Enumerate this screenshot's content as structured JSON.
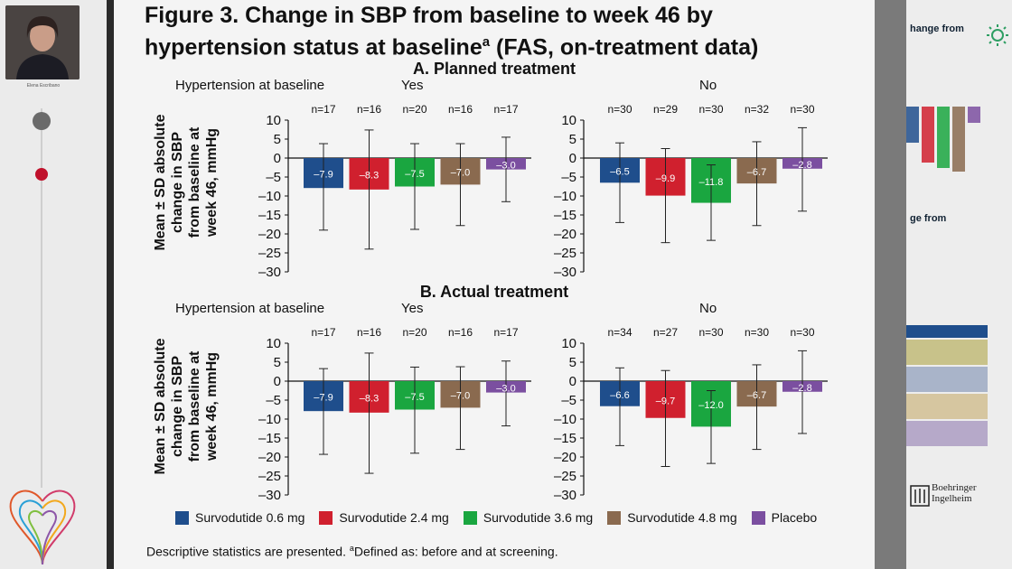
{
  "speaker": {
    "name": "Elena Escribano"
  },
  "slide": {
    "title": "Figure 3. Change in SBP from baseline to week 46 by hypertension status at baseline",
    "title_sup": "a",
    "title_suffix": " (FAS, on-treatment data)",
    "footnote_main": "Descriptive statistics are presented. ",
    "footnote_sup": "a",
    "footnote_rest": "Defined as: before and at screening."
  },
  "panels": {
    "a": {
      "title": "A. Planned treatment"
    },
    "b": {
      "title": "B. Actual treatment"
    },
    "htn_label": "Hypertension at baseline",
    "yes": "Yes",
    "no": "No",
    "ylabel_line1": "Mean ± SD absolute",
    "ylabel_line2": "change in SBP",
    "ylabel_line3": "from baseline at",
    "ylabel_line4": "week 46, mmHg"
  },
  "legend": {
    "items": [
      "Survodutide 0.6 mg",
      "Survodutide 2.4 mg",
      "Survodutide 3.6 mg",
      "Survodutide 4.8 mg",
      "Placebo"
    ],
    "colors": [
      "#1f4e8c",
      "#d0202e",
      "#1aa640",
      "#8a6a4f",
      "#7b4fa0"
    ]
  },
  "chart_data": [
    {
      "type": "bar",
      "panel": "A. Planned treatment",
      "group": "Yes",
      "categories": [
        "Survodutide 0.6 mg",
        "Survodutide 2.4 mg",
        "Survodutide 3.6 mg",
        "Survodutide 4.8 mg",
        "Placebo"
      ],
      "values": [
        -7.9,
        -8.3,
        -7.5,
        -7.0,
        -3.0
      ],
      "value_labels": [
        "–7.9",
        "–8.3",
        "–7.5",
        "–7.0",
        "–3.0"
      ],
      "err_low": [
        -19.0,
        -24.0,
        -18.8,
        -17.8,
        -11.5
      ],
      "err_high": [
        3.8,
        7.4,
        3.8,
        3.8,
        5.5
      ],
      "n": [
        "n=17",
        "n=16",
        "n=20",
        "n=16",
        "n=17"
      ],
      "ylim": [
        -30,
        10
      ]
    },
    {
      "type": "bar",
      "panel": "A. Planned treatment",
      "group": "No",
      "categories": [
        "Survodutide 0.6 mg",
        "Survodutide 2.4 mg",
        "Survodutide 3.6 mg",
        "Survodutide 4.8 mg",
        "Placebo"
      ],
      "values": [
        -6.5,
        -9.9,
        -11.8,
        -6.7,
        -2.8
      ],
      "value_labels": [
        "–6.5",
        "–9.9",
        "–11.8",
        "–6.7",
        "–2.8"
      ],
      "err_low": [
        -17.0,
        -22.3,
        -21.7,
        -17.8,
        -14.0
      ],
      "err_high": [
        4.0,
        2.5,
        -1.8,
        4.3,
        8.0
      ],
      "n": [
        "n=30",
        "n=29",
        "n=30",
        "n=32",
        "n=30"
      ],
      "ylim": [
        -30,
        10
      ]
    },
    {
      "type": "bar",
      "panel": "B. Actual treatment",
      "group": "Yes",
      "categories": [
        "Survodutide 0.6 mg",
        "Survodutide 2.4 mg",
        "Survodutide 3.6 mg",
        "Survodutide 4.8 mg",
        "Placebo"
      ],
      "values": [
        -7.9,
        -8.3,
        -7.5,
        -7.0,
        -3.0
      ],
      "value_labels": [
        "–7.9",
        "–8.3",
        "–7.5",
        "–7.0",
        "–3.0"
      ],
      "err_low": [
        -19.3,
        -24.3,
        -19.0,
        -18.0,
        -11.8
      ],
      "err_high": [
        3.3,
        7.4,
        3.7,
        3.8,
        5.3
      ],
      "n": [
        "n=17",
        "n=16",
        "n=20",
        "n=16",
        "n=17"
      ],
      "ylim": [
        -30,
        10
      ]
    },
    {
      "type": "bar",
      "panel": "B. Actual treatment",
      "group": "No",
      "categories": [
        "Survodutide 0.6 mg",
        "Survodutide 2.4 mg",
        "Survodutide 3.6 mg",
        "Survodutide 4.8 mg",
        "Placebo"
      ],
      "values": [
        -6.6,
        -9.7,
        -12.0,
        -6.7,
        -2.8
      ],
      "value_labels": [
        "–6.6",
        "–9.7",
        "–12.0",
        "–6.7",
        "–2.8"
      ],
      "err_low": [
        -17.0,
        -22.5,
        -21.7,
        -18.0,
        -13.8
      ],
      "err_high": [
        3.5,
        2.8,
        -2.5,
        4.3,
        8.0
      ],
      "n": [
        "n=34",
        "n=27",
        "n=30",
        "n=30",
        "n=30"
      ],
      "ylim": [
        -30,
        10
      ]
    }
  ],
  "axis": {
    "ticks": [
      "10",
      "5",
      "0",
      "–5",
      "–10",
      "–15",
      "–20",
      "–25",
      "–30"
    ]
  },
  "right_panel": {
    "heading1": "hange from",
    "heading2": "ge from",
    "brand": "Boehringer Ingelheim",
    "brand_line1": "Boehringer",
    "brand_line2": "Ingelheim"
  }
}
